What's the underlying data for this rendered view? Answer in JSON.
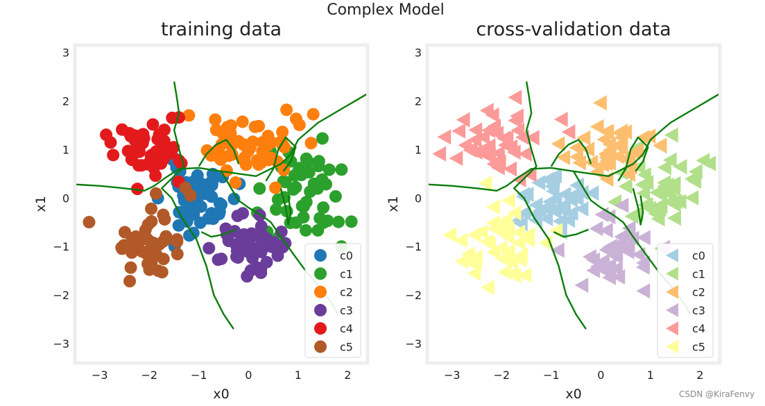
{
  "figure": {
    "suptitle": "Complex Model",
    "watermark": "CSDN @KiraFenvy",
    "background": "#ffffff",
    "frame_color": "#eeeeee",
    "boundary_color": "#0a7d0a"
  },
  "chart_data": [
    {
      "type": "scatter",
      "title": "training data",
      "xlabel": "x0",
      "ylabel": "x1",
      "xlim": [
        -3.5,
        2.4
      ],
      "ylim": [
        -3.4,
        3.15
      ],
      "xticks": [
        -3,
        -2,
        -1,
        0,
        1,
        2
      ],
      "yticks": [
        -3,
        -2,
        -1,
        0,
        1,
        2,
        3
      ],
      "xtick_labels": [
        "−3",
        "−2",
        "−1",
        "0",
        "1",
        "2"
      ],
      "ytick_labels": [
        "−3",
        "−2",
        "−1",
        "0",
        "1",
        "2",
        "3"
      ],
      "marker": "circle",
      "legend_position": "lower-right",
      "series": [
        {
          "name": "c0",
          "color": "#1f77b4",
          "center": [
            -1.0,
            0.0
          ],
          "spread": [
            0.35,
            0.35
          ],
          "count": 55
        },
        {
          "name": "c1",
          "color": "#2ca02c",
          "center": [
            1.0,
            0.0
          ],
          "spread": [
            0.4,
            0.5
          ],
          "count": 50
        },
        {
          "name": "c2",
          "color": "#ff7f0e",
          "center": [
            0.0,
            1.1
          ],
          "spread": [
            0.45,
            0.35
          ],
          "count": 55
        },
        {
          "name": "c3",
          "color": "#6a3d9a",
          "center": [
            0.0,
            -1.0
          ],
          "spread": [
            0.35,
            0.3
          ],
          "count": 45
        },
        {
          "name": "c4",
          "color": "#e31a1c",
          "center": [
            -2.0,
            1.0
          ],
          "spread": [
            0.35,
            0.4
          ],
          "count": 50
        },
        {
          "name": "c5",
          "color": "#b15928",
          "center": [
            -2.0,
            -1.0
          ],
          "spread": [
            0.35,
            0.35
          ],
          "count": 45
        }
      ]
    },
    {
      "type": "scatter",
      "title": "cross-validation data",
      "xlabel": "x0",
      "ylabel": "x1",
      "xlim": [
        -3.5,
        2.4
      ],
      "ylim": [
        -3.4,
        3.15
      ],
      "xticks": [
        -3,
        -2,
        -1,
        0,
        1,
        2
      ],
      "yticks": [
        -3,
        -2,
        -1,
        0,
        1,
        2,
        3
      ],
      "xtick_labels": [
        "−3",
        "−2",
        "−1",
        "0",
        "1",
        "2"
      ],
      "ytick_labels": [
        "−3",
        "−2",
        "−1",
        "0",
        "1",
        "2",
        "3"
      ],
      "marker": "triangle-left",
      "legend_position": "lower-right",
      "series": [
        {
          "name": "c0",
          "color": "#a6cee3",
          "center": [
            -1.0,
            -0.1
          ],
          "spread": [
            0.4,
            0.3
          ],
          "count": 40
        },
        {
          "name": "c1",
          "color": "#b2df8a",
          "center": [
            1.2,
            0.1
          ],
          "spread": [
            0.45,
            0.5
          ],
          "count": 45
        },
        {
          "name": "c2",
          "color": "#fdbf6f",
          "center": [
            0.1,
            1.0
          ],
          "spread": [
            0.45,
            0.35
          ],
          "count": 40
        },
        {
          "name": "c3",
          "color": "#cab2d6",
          "center": [
            0.3,
            -1.1
          ],
          "spread": [
            0.45,
            0.35
          ],
          "count": 40
        },
        {
          "name": "c4",
          "color": "#fb9a99",
          "center": [
            -2.1,
            1.1
          ],
          "spread": [
            0.45,
            0.4
          ],
          "count": 45
        },
        {
          "name": "c5",
          "color": "#ffff99",
          "center": [
            -2.1,
            -1.1
          ],
          "spread": [
            0.5,
            0.45
          ],
          "count": 45
        }
      ]
    }
  ],
  "decision_boundaries": [
    [
      [
        -1.5,
        2.4
      ],
      [
        -1.45,
        2.1
      ],
      [
        -1.4,
        1.75
      ],
      [
        -1.5,
        1.4
      ],
      [
        -1.4,
        1.0
      ],
      [
        -1.3,
        0.65
      ],
      [
        -1.55,
        0.4
      ],
      [
        -1.75,
        0.2
      ],
      [
        -1.55,
        0.0
      ],
      [
        -1.35,
        -0.4
      ],
      [
        -1.05,
        -0.85
      ],
      [
        -0.85,
        -1.4
      ],
      [
        -0.7,
        -2.0
      ],
      [
        -0.5,
        -2.4
      ],
      [
        -0.3,
        -2.7
      ]
    ],
    [
      [
        -3.5,
        0.28
      ],
      [
        -3.0,
        0.25
      ],
      [
        -2.5,
        0.2
      ],
      [
        -2.1,
        0.15
      ],
      [
        -1.9,
        0.25
      ],
      [
        -1.7,
        0.4
      ],
      [
        -1.4,
        0.6
      ],
      [
        -1.0,
        0.62
      ],
      [
        -0.55,
        0.55
      ],
      [
        -0.2,
        0.5
      ],
      [
        0.15,
        0.45
      ],
      [
        0.45,
        0.6
      ],
      [
        0.65,
        0.7
      ],
      [
        0.85,
        0.9
      ],
      [
        1.0,
        1.2
      ],
      [
        1.4,
        1.55
      ],
      [
        1.9,
        1.85
      ],
      [
        2.4,
        2.15
      ]
    ],
    [
      [
        -0.55,
        0.55
      ],
      [
        -0.35,
        0.2
      ],
      [
        -0.2,
        -0.05
      ],
      [
        0.0,
        -0.2
      ],
      [
        0.25,
        -0.35
      ],
      [
        0.45,
        -0.5
      ],
      [
        0.65,
        -0.8
      ],
      [
        0.9,
        -1.15
      ],
      [
        1.15,
        -1.5
      ],
      [
        1.4,
        -1.8
      ],
      [
        1.7,
        -2.2
      ],
      [
        1.8,
        -2.4
      ]
    ],
    [
      [
        -1.0,
        0.65
      ],
      [
        -0.85,
        0.9
      ],
      [
        -0.65,
        1.1
      ],
      [
        -0.45,
        1.2
      ],
      [
        -0.3,
        1.0
      ],
      [
        -0.2,
        0.7
      ]
    ],
    [
      [
        0.35,
        0.35
      ],
      [
        0.5,
        0.6
      ],
      [
        0.6,
        1.0
      ],
      [
        0.75,
        1.25
      ],
      [
        0.95,
        1.05
      ],
      [
        0.85,
        0.75
      ],
      [
        0.7,
        0.55
      ]
    ],
    [
      [
        0.65,
        0.2
      ],
      [
        0.75,
        -0.2
      ],
      [
        0.8,
        -0.55
      ],
      [
        0.85,
        -0.3
      ],
      [
        0.8,
        0.05
      ]
    ],
    [
      [
        -0.95,
        -0.7
      ],
      [
        -0.75,
        -0.8
      ],
      [
        -0.5,
        -0.75
      ],
      [
        -0.25,
        -0.65
      ]
    ]
  ]
}
